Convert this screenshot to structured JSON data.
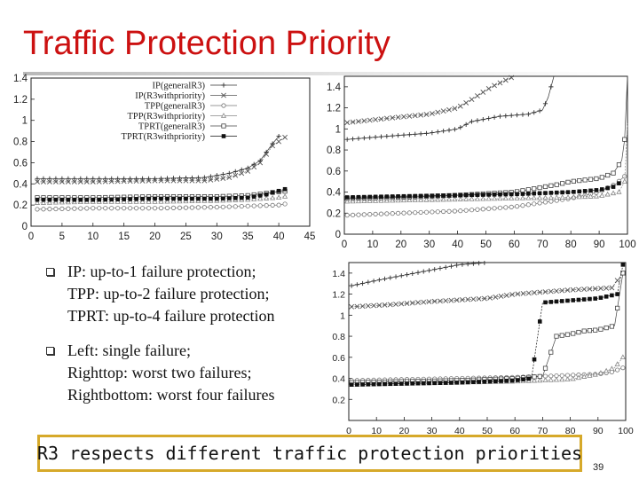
{
  "slide": {
    "title": "Traffic Protection Priority",
    "page_number": "39",
    "callout": "R3 respects different traffic protection priorities",
    "bullets": [
      {
        "lines": [
          "IP: up-to-1 failure protection;",
          "TPP: up-to-2 failure protection;",
          "TPRT: up-to-4 failure protection"
        ]
      },
      {
        "lines": [
          "Left: single failure;",
          "Righttop: worst two failures;",
          "Rightbottom: worst four failures"
        ]
      }
    ]
  },
  "chart_data": [
    {
      "type": "line",
      "title": "",
      "xlabel": "",
      "ylabel": "",
      "xlim": [
        0,
        45
      ],
      "ylim": [
        0,
        1.4
      ],
      "xticks": [
        0,
        5,
        10,
        15,
        20,
        25,
        30,
        35,
        40,
        45
      ],
      "yticks": [
        0,
        0.2,
        0.4,
        0.6,
        0.8,
        1,
        1.2,
        1.4
      ],
      "legend_position": "top-right",
      "series": [
        {
          "name": "IP(generalR3)",
          "color": "#333333",
          "points": [
            [
              1,
              0.45
            ],
            [
              10,
              0.45
            ],
            [
              20,
              0.45
            ],
            [
              28,
              0.46
            ],
            [
              32,
              0.5
            ],
            [
              35,
              0.55
            ],
            [
              37,
              0.62
            ],
            [
              39,
              0.78
            ],
            [
              40,
              0.85
            ]
          ]
        },
        {
          "name": "IP(R3withpriority)",
          "color": "#555555",
          "points": [
            [
              1,
              0.42
            ],
            [
              10,
              0.42
            ],
            [
              20,
              0.43
            ],
            [
              28,
              0.43
            ],
            [
              32,
              0.46
            ],
            [
              35,
              0.52
            ],
            [
              37,
              0.6
            ],
            [
              39,
              0.76
            ],
            [
              41,
              0.84
            ]
          ]
        },
        {
          "name": "TPP(generalR3)",
          "color": "#777777",
          "points": [
            [
              1,
              0.16
            ],
            [
              10,
              0.17
            ],
            [
              20,
              0.17
            ],
            [
              30,
              0.18
            ],
            [
              35,
              0.19
            ],
            [
              40,
              0.2
            ],
            [
              41,
              0.21
            ]
          ]
        },
        {
          "name": "TPP(R3withpriority)",
          "color": "#888888",
          "points": [
            [
              1,
              0.22
            ],
            [
              10,
              0.23
            ],
            [
              20,
              0.23
            ],
            [
              30,
              0.24
            ],
            [
              35,
              0.25
            ],
            [
              40,
              0.27
            ],
            [
              41,
              0.28
            ]
          ]
        },
        {
          "name": "TPRT(generalR3)",
          "color": "#444444",
          "points": [
            [
              1,
              0.27
            ],
            [
              10,
              0.27
            ],
            [
              20,
              0.28
            ],
            [
              30,
              0.28
            ],
            [
              35,
              0.29
            ],
            [
              39,
              0.32
            ],
            [
              41,
              0.33
            ]
          ]
        },
        {
          "name": "TPRT(R3withpriority)",
          "color": "#111111",
          "points": [
            [
              1,
              0.25
            ],
            [
              10,
              0.25
            ],
            [
              20,
              0.26
            ],
            [
              30,
              0.26
            ],
            [
              35,
              0.27
            ],
            [
              38,
              0.3
            ],
            [
              41,
              0.35
            ]
          ]
        }
      ]
    },
    {
      "type": "line",
      "title": "",
      "xlim": [
        0,
        100
      ],
      "ylim": [
        0,
        1.5
      ],
      "xticks": [
        0,
        10,
        20,
        30,
        40,
        50,
        60,
        70,
        80,
        90,
        100
      ],
      "yticks": [
        0,
        0.2,
        0.4,
        0.6,
        0.8,
        1,
        1.2,
        1.4
      ],
      "series": [
        {
          "color": "#333333",
          "points": [
            [
              1,
              0.9
            ],
            [
              15,
              0.93
            ],
            [
              30,
              0.96
            ],
            [
              40,
              1.0
            ],
            [
              45,
              1.07
            ],
            [
              55,
              1.12
            ],
            [
              65,
              1.14
            ],
            [
              70,
              1.18
            ],
            [
              72,
              1.3
            ],
            [
              74,
              1.5
            ]
          ]
        },
        {
          "color": "#555555",
          "points": [
            [
              1,
              1.06
            ],
            [
              15,
              1.1
            ],
            [
              30,
              1.14
            ],
            [
              40,
              1.2
            ],
            [
              45,
              1.28
            ],
            [
              52,
              1.4
            ],
            [
              60,
              1.5
            ]
          ]
        },
        {
          "color": "#777777",
          "points": [
            [
              1,
              0.18
            ],
            [
              20,
              0.2
            ],
            [
              40,
              0.22
            ],
            [
              50,
              0.24
            ],
            [
              60,
              0.26
            ],
            [
              70,
              0.3
            ],
            [
              80,
              0.34
            ],
            [
              90,
              0.4
            ],
            [
              96,
              0.48
            ],
            [
              99,
              0.55
            ]
          ]
        },
        {
          "color": "#888888",
          "points": [
            [
              1,
              0.31
            ],
            [
              20,
              0.32
            ],
            [
              40,
              0.33
            ],
            [
              60,
              0.34
            ],
            [
              80,
              0.35
            ],
            [
              90,
              0.36
            ],
            [
              97,
              0.4
            ],
            [
              99,
              0.5
            ],
            [
              100,
              1.05
            ]
          ]
        },
        {
          "color": "#444444",
          "points": [
            [
              1,
              0.34
            ],
            [
              20,
              0.35
            ],
            [
              40,
              0.37
            ],
            [
              60,
              0.4
            ],
            [
              75,
              0.47
            ],
            [
              80,
              0.5
            ],
            [
              90,
              0.53
            ],
            [
              95,
              0.58
            ],
            [
              98,
              0.7
            ],
            [
              99,
              0.9
            ],
            [
              100,
              1.5
            ]
          ]
        },
        {
          "color": "#111111",
          "points": [
            [
              1,
              0.35
            ],
            [
              20,
              0.36
            ],
            [
              40,
              0.37
            ],
            [
              60,
              0.38
            ],
            [
              80,
              0.4
            ],
            [
              90,
              0.42
            ],
            [
              95,
              0.45
            ],
            [
              98,
              0.5
            ]
          ]
        }
      ]
    },
    {
      "type": "line",
      "title": "",
      "xlim": [
        0,
        100
      ],
      "ylim": [
        0,
        1.5
      ],
      "xticks": [
        0,
        10,
        20,
        30,
        40,
        50,
        60,
        70,
        80,
        90,
        100
      ],
      "yticks": [
        0.2,
        0.4,
        0.6,
        0.8,
        1,
        1.2,
        1.4
      ],
      "series": [
        {
          "color": "#333333",
          "points": [
            [
              1,
              1.28
            ],
            [
              10,
              1.33
            ],
            [
              20,
              1.38
            ],
            [
              30,
              1.43
            ],
            [
              40,
              1.48
            ],
            [
              50,
              1.5
            ]
          ]
        },
        {
          "color": "#555555",
          "points": [
            [
              1,
              1.08
            ],
            [
              15,
              1.1
            ],
            [
              30,
              1.13
            ],
            [
              50,
              1.16
            ],
            [
              60,
              1.2
            ],
            [
              70,
              1.22
            ],
            [
              80,
              1.24
            ],
            [
              95,
              1.26
            ],
            [
              99,
              1.4
            ]
          ]
        },
        {
          "color": "#777777",
          "points": [
            [
              1,
              0.38
            ],
            [
              20,
              0.39
            ],
            [
              40,
              0.4
            ],
            [
              60,
              0.41
            ],
            [
              80,
              0.43
            ],
            [
              90,
              0.44
            ],
            [
              95,
              0.46
            ],
            [
              99,
              0.5
            ]
          ]
        },
        {
          "color": "#888888",
          "points": [
            [
              1,
              0.34
            ],
            [
              20,
              0.35
            ],
            [
              40,
              0.36
            ],
            [
              60,
              0.37
            ],
            [
              80,
              0.39
            ],
            [
              90,
              0.44
            ],
            [
              96,
              0.5
            ],
            [
              99,
              0.6
            ]
          ]
        },
        {
          "color": "#444444",
          "points": [
            [
              1,
              0.36
            ],
            [
              20,
              0.37
            ],
            [
              40,
              0.38
            ],
            [
              60,
              0.4
            ],
            [
              70,
              0.42
            ],
            [
              75,
              0.8
            ],
            [
              80,
              0.82
            ],
            [
              85,
              0.85
            ],
            [
              90,
              0.86
            ],
            [
              96,
              0.9
            ],
            [
              99,
              1.4
            ]
          ]
        },
        {
          "color": "#111111",
          "points": [
            [
              1,
              0.34
            ],
            [
              20,
              0.35
            ],
            [
              40,
              0.36
            ],
            [
              60,
              0.38
            ],
            [
              66,
              0.4
            ],
            [
              70,
              1.12
            ],
            [
              80,
              1.14
            ],
            [
              90,
              1.16
            ],
            [
              97,
              1.2
            ],
            [
              99,
              1.48
            ]
          ]
        }
      ]
    }
  ]
}
